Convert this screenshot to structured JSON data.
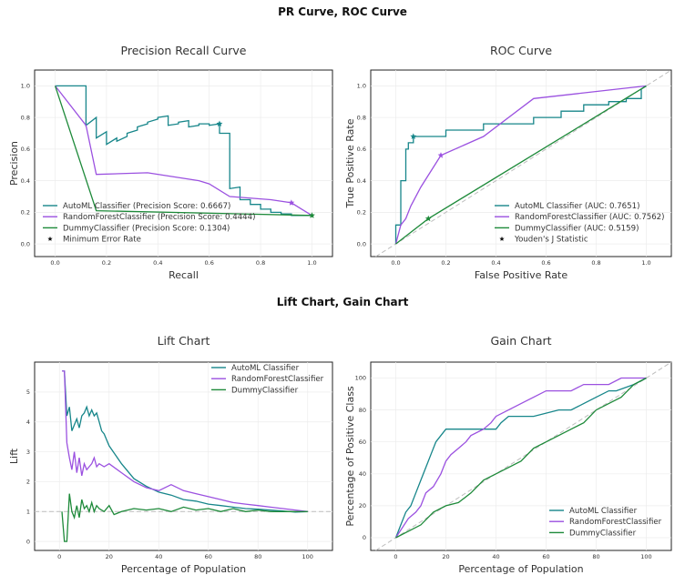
{
  "figure": {
    "top_title": "PR Curve, ROC Curve",
    "bottom_title": "Lift Chart, Gain Chart"
  },
  "colors": {
    "automl": "#17868a",
    "random_forest": "#9b51e0",
    "dummy": "#1e8a3a",
    "reference": "#bdbdbd"
  },
  "chart_data": [
    {
      "type": "line",
      "title": "Precision Recall Curve",
      "xlabel": "Recall",
      "ylabel": "Precision",
      "xlim": [
        -0.08,
        1.08
      ],
      "ylim": [
        -0.08,
        1.1
      ],
      "xticks": [
        "0.0",
        "0.2",
        "0.4",
        "0.6",
        "0.8",
        "1.0"
      ],
      "yticks": [
        "0.0",
        "0.2",
        "0.4",
        "0.6",
        "0.8",
        "1.0"
      ],
      "grid": true,
      "legend_position": "bottom-left",
      "series": [
        {
          "name": "AutoML Classifier (Precision Score: 0.6667)",
          "color_key": "automl",
          "x": [
            0,
            0.12,
            0.12,
            0.16,
            0.16,
            0.2,
            0.2,
            0.24,
            0.24,
            0.28,
            0.28,
            0.32,
            0.32,
            0.36,
            0.36,
            0.4,
            0.4,
            0.44,
            0.44,
            0.48,
            0.48,
            0.52,
            0.52,
            0.56,
            0.56,
            0.6,
            0.6,
            0.64,
            0.64,
            0.68,
            0.68,
            0.72,
            0.72,
            0.76,
            0.76,
            0.8,
            0.8,
            0.84,
            0.84,
            0.88,
            0.88,
            0.92,
            0.92,
            0.96,
            0.96,
            1.0
          ],
          "y": [
            1.0,
            1.0,
            0.75,
            0.8,
            0.67,
            0.71,
            0.63,
            0.67,
            0.65,
            0.68,
            0.7,
            0.72,
            0.74,
            0.76,
            0.77,
            0.79,
            0.8,
            0.81,
            0.75,
            0.76,
            0.77,
            0.78,
            0.74,
            0.75,
            0.76,
            0.76,
            0.75,
            0.76,
            0.7,
            0.7,
            0.35,
            0.36,
            0.28,
            0.28,
            0.25,
            0.25,
            0.22,
            0.22,
            0.2,
            0.2,
            0.19,
            0.19,
            0.18,
            0.18,
            0.18,
            0.18
          ]
        },
        {
          "name": "RandomForestClassifier (Precision Score: 0.4444)",
          "color_key": "random_forest",
          "x": [
            0,
            0.12,
            0.16,
            0.36,
            0.56,
            0.6,
            0.68,
            0.84,
            0.92,
            0.96,
            1.0
          ],
          "y": [
            1.0,
            0.75,
            0.44,
            0.45,
            0.4,
            0.38,
            0.3,
            0.28,
            0.26,
            0.22,
            0.18
          ]
        },
        {
          "name": "DummyClassifier (Precision Score: 0.1304)",
          "color_key": "dummy",
          "x": [
            0,
            0.16,
            1.0
          ],
          "y": [
            1.0,
            0.21,
            0.18
          ]
        },
        {
          "name": "Minimum Error Rate",
          "color_key": "marker",
          "x": [
            0.64,
            0.92,
            1.0
          ],
          "y": [
            0.76,
            0.26,
            0.18
          ]
        }
      ]
    },
    {
      "type": "line",
      "title": "ROC Curve",
      "xlabel": "False Positive Rate",
      "ylabel": "True Positive Rate",
      "xlim": [
        -0.1,
        1.1
      ],
      "ylim": [
        -0.08,
        1.1
      ],
      "xticks": [
        "0.0",
        "0.2",
        "0.4",
        "0.6",
        "0.8",
        "1.0"
      ],
      "yticks": [
        "0.0",
        "0.2",
        "0.4",
        "0.6",
        "0.8",
        "1.0"
      ],
      "grid": true,
      "legend_position": "bottom-right",
      "series": [
        {
          "name": "AutoML Classifier (AUC: 0.7651)",
          "color_key": "automl",
          "x": [
            0,
            0,
            0.02,
            0.02,
            0.04,
            0.04,
            0.05,
            0.05,
            0.07,
            0.07,
            0.2,
            0.2,
            0.35,
            0.35,
            0.55,
            0.55,
            0.66,
            0.66,
            0.75,
            0.75,
            0.85,
            0.85,
            0.92,
            0.92,
            0.98,
            0.98,
            1.0
          ],
          "y": [
            0,
            0.12,
            0.12,
            0.4,
            0.4,
            0.6,
            0.6,
            0.64,
            0.64,
            0.68,
            0.68,
            0.72,
            0.72,
            0.76,
            0.76,
            0.8,
            0.8,
            0.84,
            0.84,
            0.88,
            0.88,
            0.9,
            0.9,
            0.92,
            0.92,
            0.98,
            1.0
          ]
        },
        {
          "name": "RandomForestClassifier (AUC: 0.7562)",
          "color_key": "random_forest",
          "x": [
            0,
            0.02,
            0.04,
            0.06,
            0.1,
            0.18,
            0.35,
            0.55,
            1.0
          ],
          "y": [
            0,
            0.12,
            0.16,
            0.24,
            0.36,
            0.56,
            0.68,
            0.92,
            1.0
          ]
        },
        {
          "name": "DummyClassifier (AUC: 0.5159)",
          "color_key": "dummy",
          "x": [
            0,
            0.13,
            1.0
          ],
          "y": [
            0,
            0.16,
            1.0
          ]
        },
        {
          "name": "Youden's J Statistic",
          "color_key": "marker",
          "x": [
            0.07,
            0.18,
            0.13
          ],
          "y": [
            0.68,
            0.56,
            0.16
          ]
        }
      ]
    },
    {
      "type": "line",
      "title": "Lift Chart",
      "xlabel": "Percentage of Population",
      "ylabel": "Lift",
      "xlim": [
        -10,
        110
      ],
      "ylim": [
        -0.3,
        6.0
      ],
      "xticks": [
        "0",
        "20",
        "40",
        "60",
        "80",
        "100"
      ],
      "yticks": [
        "0",
        "1",
        "2",
        "3",
        "4",
        "5"
      ],
      "grid": true,
      "baseline": 1,
      "legend_position": "top-right",
      "series": [
        {
          "name": "AutoML Classifier",
          "color_key": "automl",
          "x": [
            1,
            2,
            3,
            4,
            5,
            6,
            7,
            8,
            9,
            10,
            11,
            12,
            13,
            14,
            15,
            16,
            17,
            18,
            20,
            25,
            30,
            35,
            40,
            45,
            50,
            55,
            60,
            65,
            70,
            75,
            80,
            85,
            90,
            95,
            100
          ],
          "y": [
            5.7,
            5.7,
            4.2,
            4.5,
            3.7,
            3.9,
            4.1,
            3.8,
            4.2,
            4.3,
            4.5,
            4.2,
            4.4,
            4.2,
            4.3,
            4.0,
            3.7,
            3.6,
            3.2,
            2.6,
            2.1,
            1.85,
            1.65,
            1.55,
            1.4,
            1.35,
            1.25,
            1.2,
            1.15,
            1.1,
            1.08,
            1.05,
            1.02,
            0.98,
            1.0
          ]
        },
        {
          "name": "RandomForestClassifier",
          "color_key": "random_forest",
          "x": [
            1,
            2,
            3,
            4,
            5,
            6,
            7,
            8,
            9,
            10,
            11,
            12,
            13,
            14,
            15,
            16,
            18,
            20,
            25,
            30,
            35,
            40,
            45,
            50,
            55,
            60,
            65,
            70,
            75,
            80,
            85,
            90,
            95,
            100
          ],
          "y": [
            5.7,
            5.7,
            3.3,
            2.8,
            2.4,
            3.0,
            2.3,
            2.8,
            2.2,
            2.6,
            2.4,
            2.5,
            2.6,
            2.8,
            2.5,
            2.6,
            2.5,
            2.6,
            2.3,
            2.0,
            1.8,
            1.7,
            1.9,
            1.7,
            1.6,
            1.5,
            1.4,
            1.3,
            1.25,
            1.2,
            1.15,
            1.1,
            1.05,
            1.0
          ]
        },
        {
          "name": "DummyClassifier",
          "color_key": "dummy",
          "x": [
            1,
            2,
            3,
            4,
            5,
            6,
            7,
            8,
            9,
            10,
            11,
            12,
            13,
            14,
            15,
            16,
            18,
            20,
            22,
            25,
            30,
            35,
            40,
            45,
            50,
            55,
            60,
            65,
            70,
            75,
            80,
            85,
            90,
            95,
            100
          ],
          "y": [
            1.0,
            0.0,
            0.0,
            1.6,
            1.0,
            0.8,
            1.2,
            0.8,
            1.4,
            1.1,
            1.2,
            1.0,
            1.3,
            1.0,
            1.2,
            1.1,
            1.0,
            1.2,
            0.9,
            1.0,
            1.1,
            1.05,
            1.1,
            1.0,
            1.15,
            1.05,
            1.1,
            1.0,
            1.1,
            1.0,
            1.05,
            1.0,
            1.0,
            1.0,
            1.0
          ]
        }
      ]
    },
    {
      "type": "line",
      "title": "Gain Chart",
      "xlabel": "Percentage of Population",
      "ylabel": "Percentage of Positive Class",
      "xlim": [
        -10,
        110
      ],
      "ylim": [
        -8,
        110
      ],
      "xticks": [
        "0",
        "20",
        "40",
        "60",
        "80",
        "100"
      ],
      "yticks": [
        "0",
        "20",
        "40",
        "60",
        "80",
        "100"
      ],
      "grid": true,
      "legend_position": "bottom-right",
      "series": [
        {
          "name": "AutoML Classifier",
          "color_key": "automl",
          "x": [
            0,
            2,
            4,
            6,
            8,
            10,
            12,
            14,
            16,
            18,
            20,
            25,
            30,
            40,
            42,
            45,
            55,
            65,
            70,
            75,
            80,
            85,
            88,
            95,
            100
          ],
          "y": [
            0,
            8,
            16,
            20,
            28,
            36,
            44,
            52,
            60,
            64,
            68,
            68,
            68,
            68,
            72,
            76,
            76,
            80,
            80,
            84,
            88,
            92,
            92,
            96,
            100
          ]
        },
        {
          "name": "RandomForestClassifier",
          "color_key": "random_forest",
          "x": [
            0,
            5,
            8,
            10,
            12,
            15,
            18,
            20,
            22,
            25,
            28,
            30,
            35,
            38,
            40,
            45,
            50,
            55,
            60,
            65,
            70,
            75,
            80,
            85,
            90,
            95,
            100
          ],
          "y": [
            0,
            12,
            16,
            20,
            28,
            32,
            40,
            48,
            52,
            56,
            60,
            64,
            68,
            72,
            76,
            80,
            84,
            88,
            92,
            92,
            92,
            96,
            96,
            96,
            100,
            100,
            100
          ]
        },
        {
          "name": "DummyClassifier",
          "color_key": "dummy",
          "x": [
            0,
            5,
            10,
            15,
            20,
            25,
            30,
            35,
            40,
            45,
            50,
            55,
            60,
            65,
            70,
            75,
            80,
            85,
            90,
            95,
            100
          ],
          "y": [
            0,
            4,
            8,
            16,
            20,
            22,
            28,
            36,
            40,
            44,
            48,
            56,
            60,
            64,
            68,
            72,
            80,
            84,
            88,
            96,
            100
          ]
        }
      ]
    }
  ]
}
